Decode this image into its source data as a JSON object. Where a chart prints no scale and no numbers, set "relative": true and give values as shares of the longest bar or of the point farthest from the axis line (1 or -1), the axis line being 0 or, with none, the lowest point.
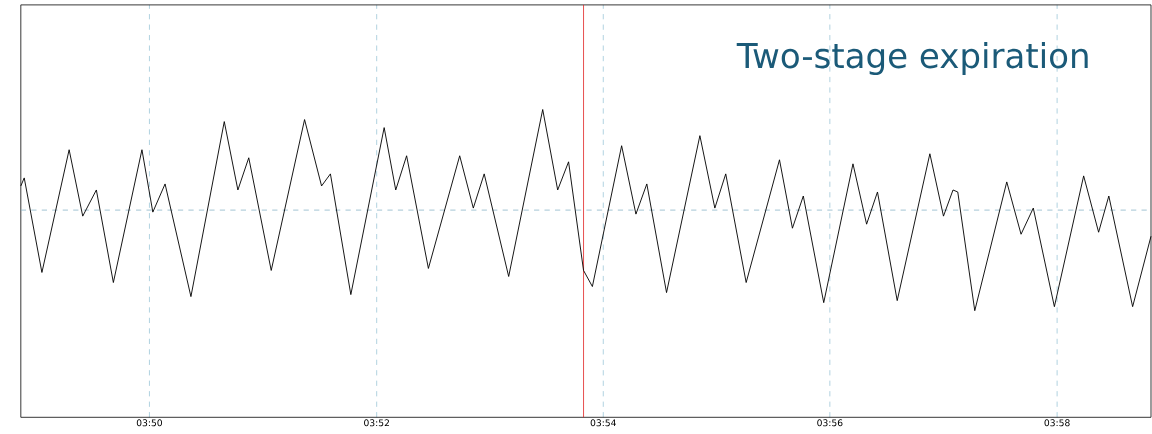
{
  "chart_data": {
    "type": "line",
    "relative": true,
    "annotations": [
      "Two-stage expiration"
    ],
    "color": "#000000",
    "grid": "x",
    "xlim": [
      3.8144,
      3.9805
    ],
    "xticks": [
      {
        "value": 3.8333,
        "label": "03:50"
      },
      {
        "value": 3.8667,
        "label": "03:52"
      },
      {
        "value": 3.9,
        "label": "03:54"
      },
      {
        "value": 3.9333,
        "label": "03:56"
      },
      {
        "value": 3.9667,
        "label": "03:58"
      }
    ],
    "ref_lines": [
      {
        "axis": "x",
        "value": 3.8971,
        "color": "#e02020",
        "line_style": "solid"
      },
      {
        "axis": "y",
        "value": 0.5,
        "color": "#8ab4c8",
        "line_style": "dashed"
      }
    ],
    "x": [
      3.8144,
      3.8149,
      3.8175,
      3.8215,
      3.8235,
      3.8255,
      3.828,
      3.8322,
      3.8338,
      3.8356,
      3.8394,
      3.8443,
      3.8463,
      3.8479,
      3.8512,
      3.8561,
      3.8586,
      3.8599,
      3.8629,
      3.8678,
      3.8695,
      3.8711,
      3.8743,
      3.8789,
      3.8809,
      3.8825,
      3.8861,
      3.8911,
      3.8933,
      3.8949,
      3.8971,
      3.8984,
      3.9027,
      3.9048,
      3.9064,
      3.9093,
      3.9142,
      3.9164,
      3.918,
      3.921,
      3.9259,
      3.9278,
      3.9294,
      3.9324,
      3.9367,
      3.9387,
      3.9403,
      3.9432,
      3.948,
      3.95,
      3.9514,
      3.9521,
      3.9546,
      3.9593,
      3.9614,
      3.9632,
      3.9663,
      3.9706,
      3.9728,
      3.9743,
      3.9778,
      3.9805
    ],
    "values": [
      0.62,
      0.66,
      0.19,
      0.8,
      0.47,
      0.6,
      0.14,
      0.8,
      0.49,
      0.63,
      0.07,
      0.94,
      0.6,
      0.76,
      0.2,
      0.95,
      0.62,
      0.68,
      0.08,
      0.91,
      0.6,
      0.77,
      0.21,
      0.77,
      0.51,
      0.68,
      0.17,
      1.0,
      0.6,
      0.74,
      0.2,
      0.12,
      0.82,
      0.48,
      0.63,
      0.09,
      0.87,
      0.51,
      0.68,
      0.14,
      0.75,
      0.41,
      0.57,
      0.04,
      0.73,
      0.43,
      0.59,
      0.05,
      0.78,
      0.47,
      0.6,
      0.59,
      0.0,
      0.64,
      0.38,
      0.51,
      0.02,
      0.67,
      0.39,
      0.57,
      0.02,
      0.37
    ]
  }
}
